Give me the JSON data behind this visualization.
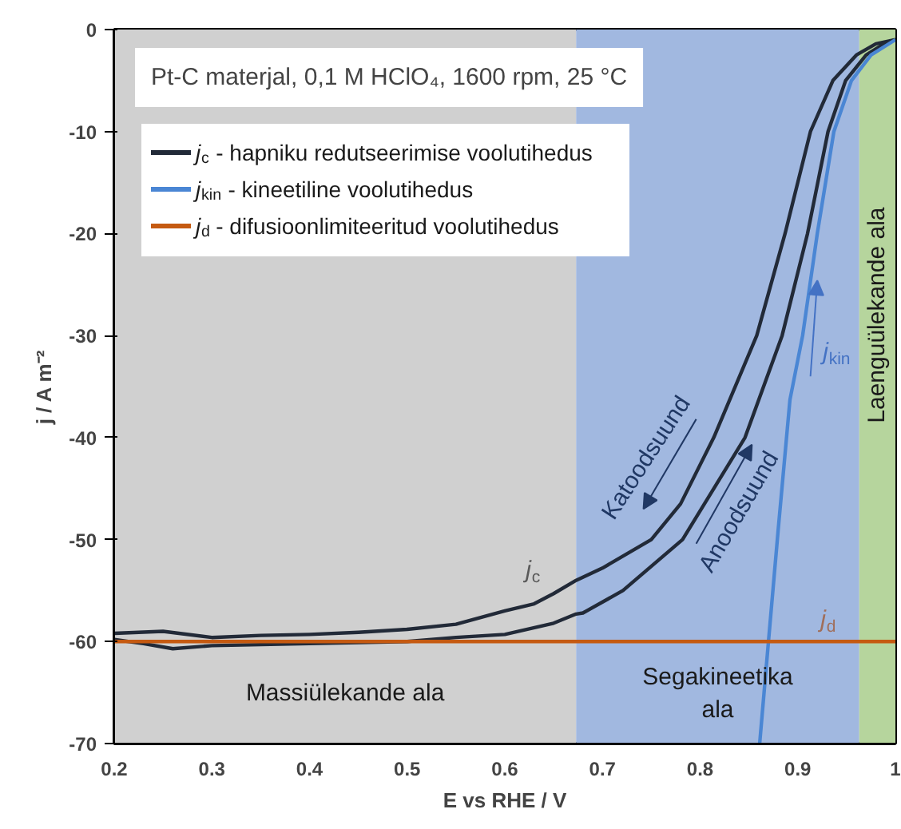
{
  "chart_data": {
    "type": "line",
    "title": "Pt-C materjal, 0,1 M HClO₄, 1600 rpm, 25 °C",
    "xlabel": "E vs RHE / V",
    "ylabel": "j / A m⁻²",
    "xlim": [
      0.2,
      1.0
    ],
    "ylim": [
      -70,
      0
    ],
    "xticks": [
      0.2,
      0.3,
      0.4,
      0.5,
      0.6,
      0.7,
      0.8,
      0.9,
      1
    ],
    "yticks": [
      0,
      -10,
      -20,
      -30,
      -40,
      -50,
      -60,
      -70
    ],
    "legend": "top left",
    "line_style": "solid",
    "marker": "none",
    "series": [
      {
        "name": "j$_{c}$ - hapniku redutseerimise voolutihedus",
        "color": "#222a38",
        "x": [
          0.2,
          0.25,
          0.3,
          0.35,
          0.4,
          0.45,
          0.5,
          0.55,
          0.6,
          0.63,
          0.65,
          0.673,
          0.7,
          0.75,
          0.78,
          0.814,
          0.858,
          0.887,
          0.913,
          0.936,
          0.96,
          0.98,
          1.0
        ],
        "values": [
          -59.2,
          -59.0,
          -59.6,
          -59.4,
          -59.3,
          -59.1,
          -58.8,
          -58.3,
          -57.0,
          -56.3,
          -55.3,
          -54.0,
          -52.8,
          -50.0,
          -46.5,
          -40.0,
          -30.0,
          -20.0,
          -10.0,
          -5.0,
          -2.5,
          -1.4,
          -1.0
        ]
      },
      {
        "color": "#222a38",
        "x": [
          0.2,
          0.23,
          0.26,
          0.3,
          0.35,
          0.4,
          0.45,
          0.5,
          0.55,
          0.6,
          0.65,
          0.673,
          0.68,
          0.721,
          0.782,
          0.846,
          0.884,
          0.91,
          0.931,
          0.949,
          0.97,
          0.99,
          1.0
        ],
        "values": [
          -59.8,
          -60.2,
          -60.7,
          -60.4,
          -60.3,
          -60.2,
          -60.1,
          -60.0,
          -59.6,
          -59.3,
          -58.2,
          -57.3,
          -57.2,
          -55.0,
          -50.0,
          -40.0,
          -30.0,
          -20.0,
          -10.0,
          -5.0,
          -2.5,
          -1.3,
          -1.0
        ]
      },
      {
        "name": "j$_{kin}$ - kineetiline voolutihedus",
        "color": "#4a86d4",
        "x": [
          0.861,
          0.87,
          0.88,
          0.892,
          0.905,
          0.92,
          0.937,
          0.955,
          0.975,
          1.0
        ],
        "values": [
          -70,
          -60,
          -49,
          -36.3,
          -30,
          -20,
          -10,
          -5,
          -2.5,
          -1
        ]
      },
      {
        "name": "j$_{d}$ - difusioonlimiteeritud voolutihedus",
        "color": "#c55a11",
        "x": [
          0.2,
          1.0
        ],
        "values": [
          -60,
          -60
        ]
      }
    ],
    "bands": [
      {
        "axis": "x",
        "from": 0.2,
        "to": 0.673,
        "label": "Massiülekande ala",
        "color": "#d0d0d0"
      },
      {
        "axis": "x",
        "from": 0.673,
        "to": 0.963,
        "label": "Segakineetika\nala",
        "color": "#a1b8e0"
      },
      {
        "axis": "x",
        "from": 0.963,
        "to": 1.0,
        "label": "Laenguülekande ala",
        "color": "#b6d59d"
      }
    ],
    "annotations": [
      "Katoodsuund",
      "Anoodsuund",
      "j$_{c}$",
      {
        "text": "j$_{kin}$",
        "x": 0.905,
        "y": -30
      },
      "j$_{d}$"
    ]
  }
}
